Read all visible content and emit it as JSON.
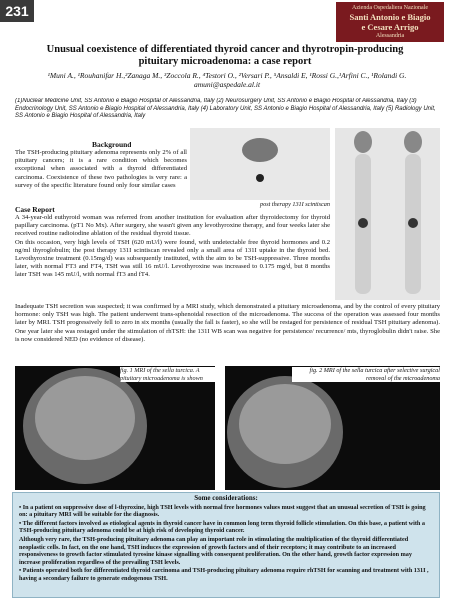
{
  "header": {
    "number": "231",
    "logo": [
      "Azienda Ospedaliera Nazionale",
      "Santi Antonio e Biagio",
      "e Cesare Arrigo",
      "Alessandria"
    ],
    "title": "Unusual coexistence of differentiated thyroid cancer and thyrotropin-producing pituitary microadenoma: a case report",
    "authors": "¹Muni A., ¹Rouhanifar H.,²Zanaga M., ³Zoccola R., ⁴Testori O., ²Versari P., ⁵Ansaldi E, ¹Rossi G.,¹Arfini C., ¹Rolandi G. amuni@aspedale.al.it",
    "affiliations": "(1)Nuclear Medicine Unit, SS Antonio e Biagio Hospital of Alessandria, Italy (2) Neurosurgery Unit, SS Antonio e Biagio Hospital of Alessandria, Italy (3) Endocrinology Unit, SS Antonio e Biagio Hospital of Alessandria, Italy (4) Laboratory Unit, SS Antonio e Biagio Hospital of Alessandria, Italy (5) Radiology Unit, SS Antonio e Biagio Hospital of Alessandria, Italy"
  },
  "background": {
    "heading": "Background",
    "text": "The TSH-producing pituitary adenoma represents only 2% of all pituitary cancers; it is a rare condition which becomes exceptional when associated with a thyroid differentiated carcinoma. Coexistence of these two pathologies is very rare: a survey of the specific literature found only four similar cases"
  },
  "figures": {
    "scan_caption": "post therapy 131I scintiscan",
    "fig1_caption": "fig. 1 MRI of the sella turcica. A pituitary microadenoma is shown",
    "fig2_caption": "fig. 2 MRI of the sella turcica after selective surgical removal of the microadenoma"
  },
  "case_report": {
    "heading": "Case Report",
    "paragraphs": [
      "A 34-year-old euthyroid woman was referred from another institution for evaluation after thyroidectomy for thyroid papillary carcinoma. (pT1 No Mx). After surgery, she wasn't given any levothyroxine therapy, and four weeks later she received routine radioiodine ablation of the residual thyroid tissue.",
      "On this occasion, very high levels of TSH (620 mU/l) were found, with undetectable free thyroid hormones and 0.2 ng/ml thyroglobulin; the post therapy 131I scintiscan revealed only a small area of 131I uptake in the thyroid bed. Levothyroxine treatment (0.15mg/d) was subsequently instituted, with the aim to be TSH-suppressive. Three months later, with normal FT3 and FT4, TSH was still 16 mU/l. Levothyroxine was increased to 0.175 mg/d, but 8 months later TSH was 145 mU/l, with normal fT3 and fT4.",
      "Inadequate TSH secretion was suspected; it was confirmed by a MRI study, which demonstrated a pituitary microadenoma, and by the control of every pituitary hormone: only TSH was high. The patient underwent trans-sphenoidal resection of the microadenoma. The success of the operation was assessed four months later by MRI. TSH progressively fell to zero in six months (usually the fall is faster), so she will be restaged for persistence of residual TSH pituitary adenoma). One year later she was restaged under the stimulation of rhTSH: the 131I WB scan was negative for persistence/ recurrence/ mts, thyroglobulin didn't raise. She is now considered NED (no evidence of disease)."
    ]
  },
  "considerations": {
    "heading": "Some considerations:",
    "items": [
      "• In a patient on suppressive dose of l-thyroxine, high TSH levels with normal free hormones values must suggest that an unusual secretion of TSH is going on: a pituitary MRI will be suitable for the diagnosis.",
      "• The different factors involved as etiological agents in thyroid cancer have in common long term thyroid follicle stimulation. On this base, a patient with a TSH-producing pituitary adenoma could be at high risk of developing thyroid cancer.",
      "Although very rare, the TSH-producing pituitary adenoma can play an important role in stimulating the multiplication of the thyroid differentiated neoplastic cells. In fact, on the one hand, TSH induces the expression of growth factors and of their receptors; it may contribute to an increased responsiveness to growth factor stimulated tyrosine kinase signalling with consequent proliferation. On the other hand, growth factor expression may increase proliferation regardless of the prevailing TSH levels.",
      "• Patients operated both for differentiated thyroid carcinoma and TSH-producing pituitary adenoma require rhTSH for scanning and treatment with 131I , having a secondary failure to generate endogenous TSH."
    ]
  }
}
